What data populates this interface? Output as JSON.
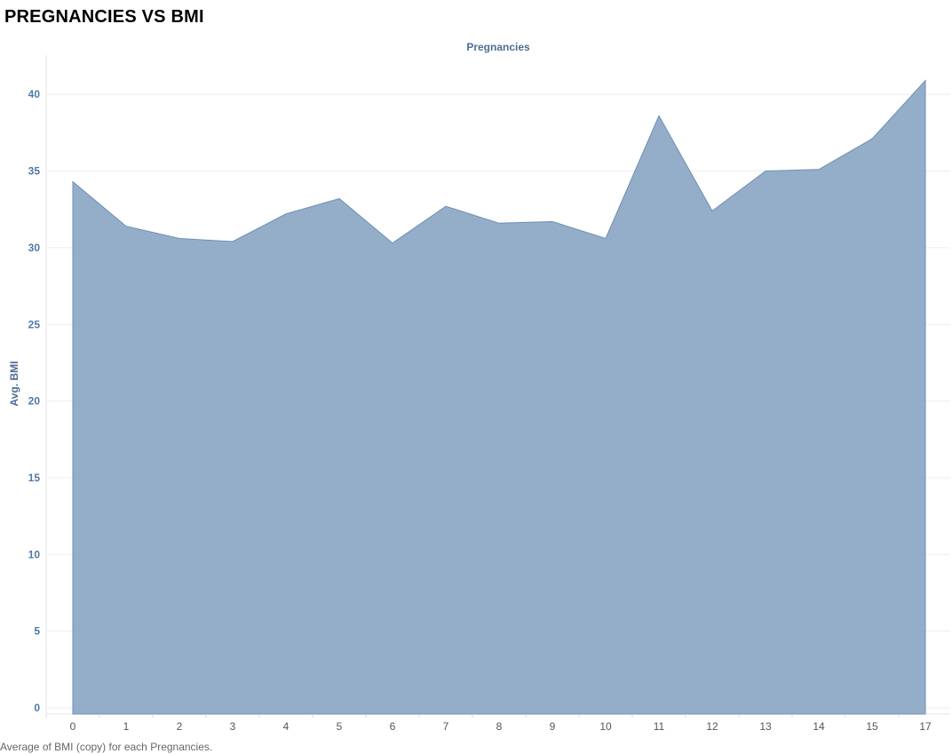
{
  "sheet_title": "PREGNANCIES VS BMI",
  "caption": "Average of BMI (copy) for each Pregnancies.",
  "colors": {
    "area_fill": "#7f9ebf",
    "area_stroke": "#6f8fb3",
    "axis_text": "#4e79a7",
    "grid": "#eeeeee"
  },
  "chart_data": {
    "type": "area",
    "title": "",
    "xlabel": "Pregnancies",
    "ylabel": "Avg. BMI",
    "x": [
      0,
      1,
      2,
      3,
      4,
      5,
      6,
      7,
      8,
      9,
      10,
      11,
      12,
      13,
      14,
      15,
      17
    ],
    "values": [
      34.3,
      31.4,
      30.6,
      30.4,
      32.2,
      33.2,
      30.3,
      32.7,
      31.6,
      31.7,
      30.6,
      38.6,
      32.4,
      35.0,
      35.1,
      37.1,
      40.9
    ],
    "ylim": [
      0,
      43
    ],
    "yticks": [
      0,
      5,
      10,
      15,
      20,
      25,
      30,
      35,
      40
    ],
    "grid": true,
    "legend": "none"
  }
}
